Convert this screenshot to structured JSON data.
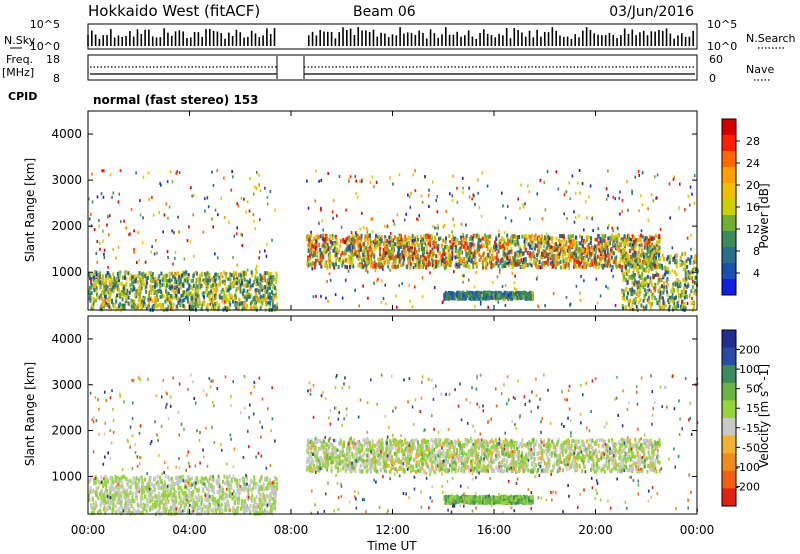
{
  "header": {
    "station_title": "Hokkaido West (fitACF)",
    "beam_label": "Beam 06",
    "date_label": "03/Jun/2016"
  },
  "status_panel": {
    "nsky_label": "N.Sky",
    "nsky_ticks": [
      "10^5",
      "10^0"
    ],
    "nsearch_label": "N.Search",
    "nsearch_ticks": [
      "10^5",
      "10^0"
    ],
    "freq_label": "Freq.",
    "freq_unit": "[MHz]",
    "freq_ticks": [
      "18",
      "8"
    ],
    "nave_label": "Nave",
    "nave_ticks": [
      "60",
      "0"
    ],
    "cpid_label": "CPID",
    "cpid_value": "normal (fast stereo) 153"
  },
  "x_axis": {
    "label": "Time UT",
    "ticks": [
      "00:00",
      "04:00",
      "08:00",
      "12:00",
      "16:00",
      "20:00",
      "00:00"
    ]
  },
  "power_colorbar": {
    "label": "Power [dB]",
    "ticks": [
      "28",
      "24",
      "20",
      "16",
      "12",
      "8",
      "4"
    ],
    "colors": [
      "#d40000",
      "#ff2000",
      "#ff6a00",
      "#ffa000",
      "#f0c000",
      "#c8d200",
      "#6fb030",
      "#3e8a5a",
      "#2a6e8a",
      "#1b4fb0",
      "#1020e0"
    ]
  },
  "velocity_colorbar": {
    "label": "Velocity [m s^-1]",
    "ticks": [
      "200",
      "100",
      "50",
      "15",
      "-15",
      "-50",
      "-100",
      "-200"
    ],
    "colors": [
      "#1f2f8f",
      "#2a4aa8",
      "#3c8a5e",
      "#6ab446",
      "#96d43a",
      "#c8c8c8",
      "#f0b030",
      "#f08a18",
      "#f06010",
      "#e02010"
    ]
  },
  "chart_data": [
    {
      "type": "heatmap",
      "title": "Power",
      "xlabel": "Time UT",
      "ylabel": "Slant Range [km]",
      "xlim": [
        "00:00",
        "24:00"
      ],
      "ylim": [
        180,
        4500
      ],
      "y_ticks": [
        1000,
        2000,
        3000,
        4000
      ],
      "colorbar": {
        "label": "Power [dB]",
        "range": [
          0,
          30
        ]
      },
      "data_gap": [
        "07:25",
        "08:35"
      ],
      "features": [
        {
          "time_range": [
            "00:00",
            "07:25"
          ],
          "range_km": [
            180,
            1000
          ],
          "power_db": [
            4,
            20
          ]
        },
        {
          "time_range": [
            "08:35",
            "22:30"
          ],
          "range_km": [
            1100,
            1800
          ],
          "power_db": [
            4,
            28
          ]
        },
        {
          "time_range": [
            "14:00",
            "17:30"
          ],
          "range_km": [
            420,
            560
          ],
          "power_db": [
            4,
            12
          ]
        },
        {
          "time_range": [
            "21:00",
            "24:00"
          ],
          "range_km": [
            180,
            1400
          ],
          "power_db": [
            4,
            20
          ]
        }
      ]
    },
    {
      "type": "heatmap",
      "title": "Velocity",
      "xlabel": "Time UT",
      "ylabel": "Slant Range [km]",
      "xlim": [
        "00:00",
        "24:00"
      ],
      "ylim": [
        180,
        4500
      ],
      "y_ticks": [
        1000,
        2000,
        3000,
        4000
      ],
      "colorbar": {
        "label": "Velocity [m s^-1]",
        "range": [
          -200,
          200
        ]
      },
      "data_gap": [
        "07:25",
        "08:35"
      ],
      "features": [
        {
          "time_range": [
            "00:00",
            "07:25"
          ],
          "range_km": [
            180,
            1000
          ],
          "velocity_ms": [
            -15,
            15
          ]
        },
        {
          "time_range": [
            "08:35",
            "22:30"
          ],
          "range_km": [
            1100,
            1800
          ],
          "velocity_ms": [
            -50,
            50
          ]
        },
        {
          "time_range": [
            "14:00",
            "17:30"
          ],
          "range_km": [
            420,
            560
          ],
          "velocity_ms": [
            15,
            100
          ]
        }
      ]
    }
  ]
}
